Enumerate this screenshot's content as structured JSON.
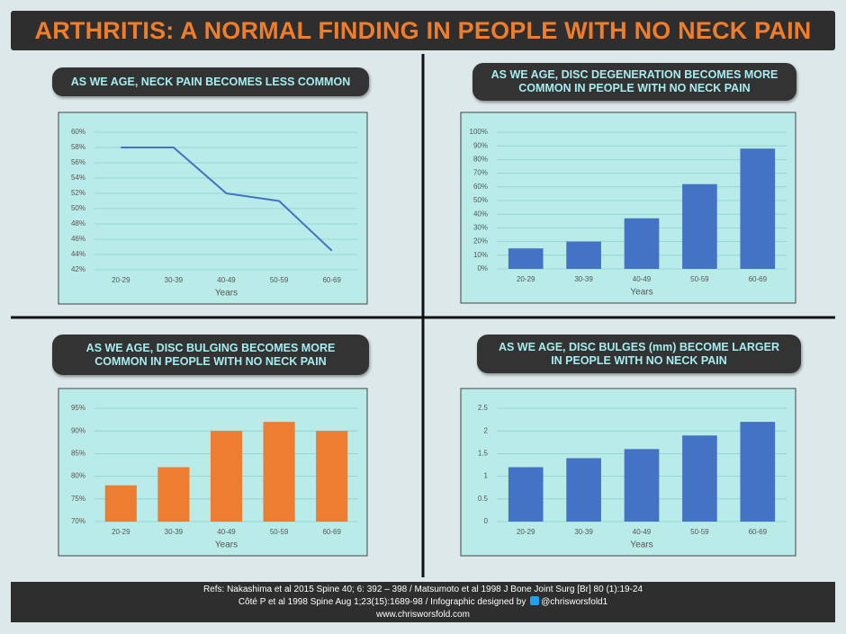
{
  "title": "ARTHRITIS: A NORMAL FINDING IN PEOPLE WITH NO NECK PAIN",
  "footer": {
    "line1": "Refs: Nakashima et al 2015 Spine 40; 6: 392 – 398 / Matsumoto et al 1998 J Bone Joint Surg [Br] 80 (1):19-24",
    "line2": "Côté P et al 1998 Spine Aug 1;23(15):1689-98 / Infographic designed by",
    "handle": "@chrisworsfold1",
    "line3": "www.chrisworsfold.com"
  },
  "chart_data": [
    {
      "type": "line",
      "title": "AS WE AGE, NECK PAIN BECOMES LESS COMMON",
      "categories": [
        "20-29",
        "30-39",
        "40-49",
        "50-59",
        "60-69"
      ],
      "values": [
        58,
        58,
        52,
        51,
        44.5
      ],
      "color": "#4472c4",
      "xlabel": "Years",
      "ylim": [
        42,
        60
      ],
      "yticks": [
        {
          "value": 42,
          "label": "42%"
        },
        {
          "value": 44,
          "label": "44%"
        },
        {
          "value": 46,
          "label": "46%"
        },
        {
          "value": 48,
          "label": "48%"
        },
        {
          "value": 50,
          "label": "50%"
        },
        {
          "value": 52,
          "label": "52%"
        },
        {
          "value": 54,
          "label": "54%"
        },
        {
          "value": 56,
          "label": "56%"
        },
        {
          "value": 58,
          "label": "58%"
        },
        {
          "value": 60,
          "label": "60%"
        }
      ],
      "grid": true
    },
    {
      "type": "bar",
      "title": "AS WE AGE, DISC DEGENERATION BECOMES MORE COMMON IN PEOPLE WITH NO NECK PAIN",
      "categories": [
        "20-29",
        "30-39",
        "40-49",
        "50-59",
        "60-69"
      ],
      "values": [
        15,
        20,
        37,
        62,
        88
      ],
      "color": "#4472c4",
      "xlabel": "Years",
      "ylim": [
        0,
        100
      ],
      "yticks": [
        {
          "value": 0,
          "label": "0%"
        },
        {
          "value": 10,
          "label": "10%"
        },
        {
          "value": 20,
          "label": "20%"
        },
        {
          "value": 30,
          "label": "30%"
        },
        {
          "value": 40,
          "label": "40%"
        },
        {
          "value": 50,
          "label": "50%"
        },
        {
          "value": 60,
          "label": "60%"
        },
        {
          "value": 70,
          "label": "70%"
        },
        {
          "value": 80,
          "label": "80%"
        },
        {
          "value": 90,
          "label": "90%"
        },
        {
          "value": 100,
          "label": "100%"
        }
      ],
      "grid": true
    },
    {
      "type": "bar",
      "title": "AS WE AGE, DISC BULGING BECOMES MORE COMMON IN PEOPLE WITH NO NECK PAIN",
      "categories": [
        "20-29",
        "30-39",
        "40-49",
        "50-59",
        "60-69"
      ],
      "values": [
        78,
        82,
        90,
        92,
        90
      ],
      "color": "#ed7d31",
      "xlabel": "Years",
      "ylim": [
        70,
        95
      ],
      "yticks": [
        {
          "value": 70,
          "label": "70%"
        },
        {
          "value": 75,
          "label": "75%"
        },
        {
          "value": 80,
          "label": "80%"
        },
        {
          "value": 85,
          "label": "85%"
        },
        {
          "value": 90,
          "label": "90%"
        },
        {
          "value": 95,
          "label": "95%"
        }
      ],
      "grid": true
    },
    {
      "type": "bar",
      "title": "AS WE AGE, DISC BULGES (mm) BECOME LARGER IN PEOPLE WITH NO NECK PAIN",
      "categories": [
        "20-29",
        "30-39",
        "40-49",
        "50-59",
        "60-69"
      ],
      "values": [
        1.2,
        1.4,
        1.6,
        1.9,
        2.2
      ],
      "color": "#4472c4",
      "xlabel": "Years",
      "ylim": [
        0,
        2.5
      ],
      "yticks": [
        0,
        0.5,
        1,
        1.5,
        2,
        2.5
      ],
      "grid": true
    }
  ]
}
